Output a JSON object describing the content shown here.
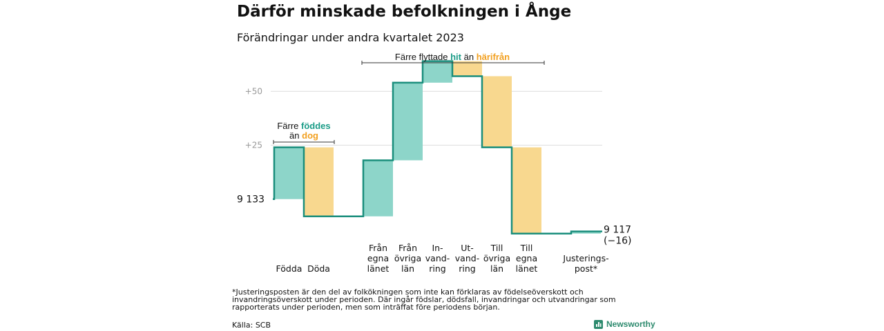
{
  "title": "Därför minskade befolkningen i Ånge",
  "subtitle": "Förändringar under andra kvartalet 2023",
  "chart_data": {
    "type": "waterfall",
    "start_value": 9133,
    "start_label": "9 133",
    "end_value": 9117,
    "end_label": "9 117",
    "change_label": "(−16)",
    "y_ticks": [
      {
        "value": 9158,
        "label": "+25"
      },
      {
        "value": 9183,
        "label": "+50"
      }
    ],
    "ylim": [
      9115,
      9194
    ],
    "steps": [
      {
        "category": "Födda",
        "lines": [
          "Födda"
        ],
        "change": 24,
        "type": "increase"
      },
      {
        "category": "Döda",
        "lines": [
          "Döda"
        ],
        "change": -32,
        "type": "decrease"
      },
      {
        "category": "Från egna länet",
        "lines": [
          "Från",
          "egna",
          "länet"
        ],
        "change": 26,
        "type": "increase"
      },
      {
        "category": "Från övriga län",
        "lines": [
          "Från",
          "övriga",
          "län"
        ],
        "change": 36,
        "type": "increase"
      },
      {
        "category": "Invandring",
        "lines": [
          "In-",
          "vand-",
          "ring"
        ],
        "change": 10,
        "type": "increase"
      },
      {
        "category": "Utvandring",
        "lines": [
          "Ut-",
          "vand-",
          "ring"
        ],
        "change": -7,
        "type": "decrease"
      },
      {
        "category": "Till övriga län",
        "lines": [
          "Till",
          "övriga",
          "län"
        ],
        "change": -33,
        "type": "decrease"
      },
      {
        "category": "Till egna länet",
        "lines": [
          "Till",
          "egna",
          "länet"
        ],
        "change": -40,
        "type": "decrease"
      },
      {
        "category": "Justeringspost*",
        "lines": [
          "Justerings-",
          "post*"
        ],
        "change": 1,
        "type": "adjustment"
      }
    ],
    "annotations": {
      "births": {
        "prefix": "Färre",
        "highlight1": "föddes",
        "middle": "än",
        "highlight2": "dog"
      },
      "moves": {
        "prefix": "Färre flyttade",
        "highlight1": "hit",
        "middle": "än",
        "highlight2": "härifrån"
      }
    },
    "colors": {
      "increase": "#8dd5c9",
      "decrease": "#f8d88f",
      "line": "#1a8e7c",
      "highlight_teal": "#1a9c87",
      "highlight_orange": "#f2a020",
      "grid": "#dddddd",
      "tick": "#999999"
    }
  },
  "footnote": "*Justeringsposten är den del av folkökningen som inte kan förklaras av födelseöverskott och invandringsöverskott under perioden. Där ingår födslar, dödsfall, invandringar och utvandringar som rapporterats under perioden, men som inträffat före periodens början.",
  "source": "Källa: SCB",
  "brand": {
    "name": "Newsworthy",
    "icon": "newsworthy-logo-icon"
  }
}
